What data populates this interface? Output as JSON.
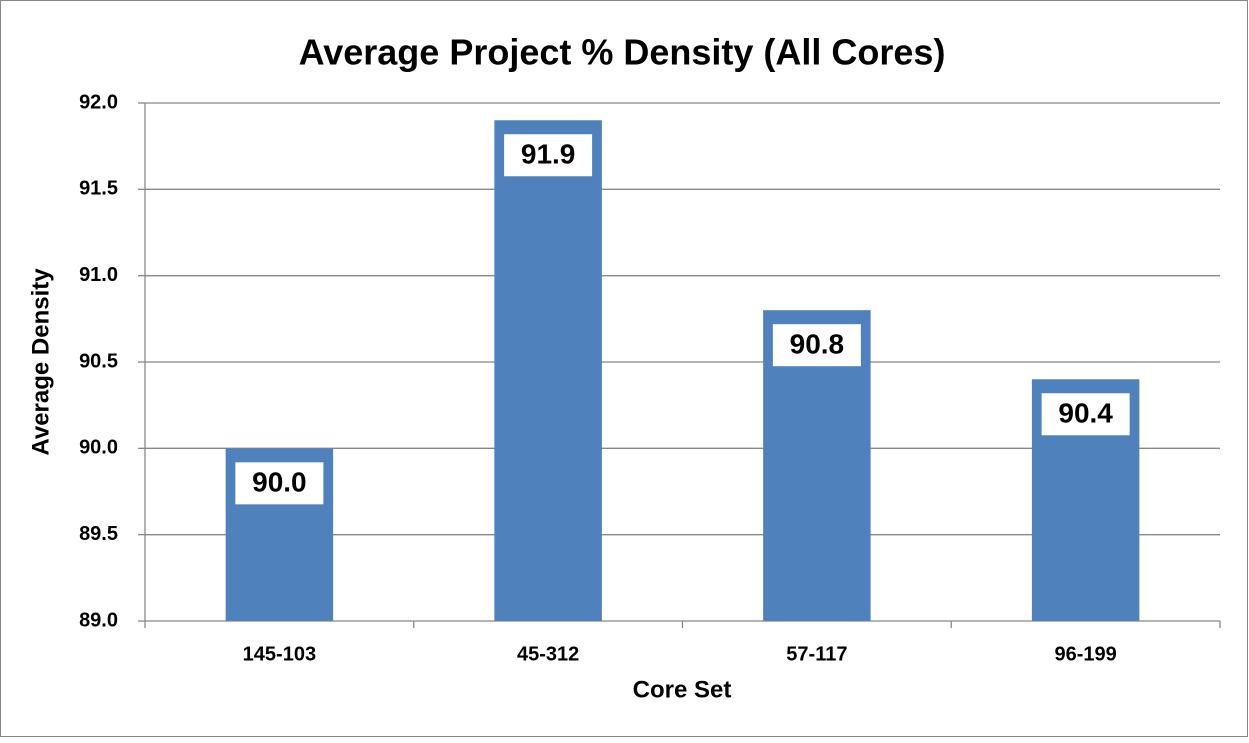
{
  "chart_data": {
    "type": "bar",
    "title": "Average Project % Density (All Cores)",
    "xlabel": "Core Set",
    "ylabel": "Average Density",
    "categories": [
      "145-103",
      "45-312",
      "57-117",
      "96-199"
    ],
    "values": [
      90.0,
      91.9,
      90.8,
      90.4
    ],
    "value_labels": [
      "90.0",
      "91.9",
      "90.8",
      "90.4"
    ],
    "color": "#4f81bd",
    "ylim": [
      89.0,
      92.0
    ],
    "yticks": [
      {
        "value": 89.0,
        "label": "89.0"
      },
      {
        "value": 89.5,
        "label": "89.5"
      },
      {
        "value": 90.0,
        "label": "90.0"
      },
      {
        "value": 90.5,
        "label": "90.5"
      },
      {
        "value": 91.0,
        "label": "91.0"
      },
      {
        "value": 91.5,
        "label": "91.5"
      },
      {
        "value": 92.0,
        "label": "92.0"
      }
    ],
    "grid": true
  }
}
